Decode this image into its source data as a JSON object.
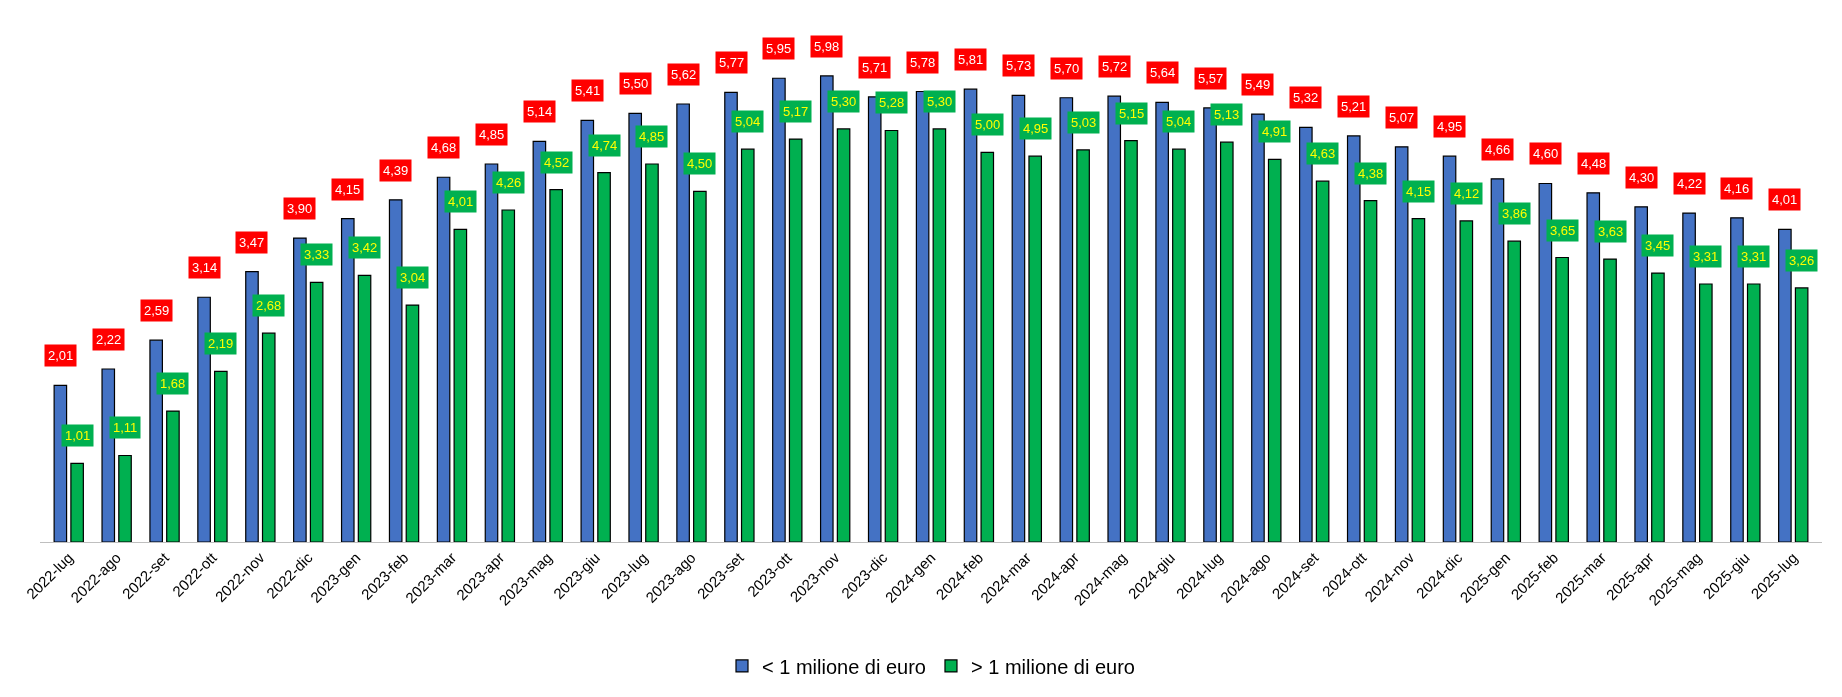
{
  "chart_data": {
    "type": "bar",
    "categories": [
      "2022-lug",
      "2022-ago",
      "2022-set",
      "2022-ott",
      "2022-nov",
      "2022-dic",
      "2023-gen",
      "2023-feb",
      "2023-mar",
      "2023-apr",
      "2023-mag",
      "2023-giu",
      "2023-lug",
      "2023-ago",
      "2023-set",
      "2023-ott",
      "2023-nov",
      "2023-dic",
      "2024-gen",
      "2024-feb",
      "2024-mar",
      "2024-apr",
      "2024-mag",
      "2024-giu",
      "2024-lug",
      "2024-ago",
      "2024-set",
      "2024-ott",
      "2024-nov",
      "2024-dic",
      "2025-gen",
      "2025-feb",
      "2025-mar",
      "2025-apr",
      "2025-mag",
      "2025-giu",
      "2025-lug"
    ],
    "series": [
      {
        "name": "< 1 milione di euro",
        "color": "#4472c4",
        "values": [
          2.01,
          2.22,
          2.59,
          3.14,
          3.47,
          3.9,
          4.15,
          4.39,
          4.68,
          4.85,
          5.14,
          5.41,
          5.5,
          5.62,
          5.77,
          5.95,
          5.98,
          5.71,
          5.78,
          5.81,
          5.73,
          5.7,
          5.72,
          5.64,
          5.57,
          5.49,
          5.32,
          5.21,
          5.07,
          4.95,
          4.66,
          4.6,
          4.48,
          4.3,
          4.22,
          4.16,
          4.01
        ],
        "value_labels": [
          "2,01",
          "2,22",
          "2,59",
          "3,14",
          "3,47",
          "3,90",
          "4,15",
          "4,39",
          "4,68",
          "4,85",
          "5,14",
          "5,41",
          "5,50",
          "5,62",
          "5,77",
          "5,95",
          "5,98",
          "5,71",
          "5,78",
          "5,81",
          "5,73",
          "5,70",
          "5,72",
          "5,64",
          "5,57",
          "5,49",
          "5,32",
          "5,21",
          "5,07",
          "4,95",
          "4,66",
          "4,60",
          "4,48",
          "4,30",
          "4,22",
          "4,16",
          "4,01"
        ]
      },
      {
        "name": "> 1 milione di euro",
        "color": "#00b050",
        "values": [
          1.01,
          1.11,
          1.68,
          2.19,
          2.68,
          3.33,
          3.42,
          3.04,
          4.01,
          4.26,
          4.52,
          4.74,
          4.85,
          4.5,
          5.04,
          5.17,
          5.3,
          5.28,
          5.3,
          5.0,
          4.95,
          5.03,
          5.15,
          5.04,
          5.13,
          4.91,
          4.63,
          4.38,
          4.15,
          4.12,
          3.86,
          3.65,
          3.63,
          3.45,
          3.31,
          3.31,
          3.26
        ],
        "value_labels": [
          "1,01",
          "1,11",
          "1,68",
          "2,19",
          "2,68",
          "3,33",
          "3,42",
          "3,04",
          "4,01",
          "4,26",
          "4,52",
          "4,74",
          "4,85",
          "4,50",
          "5,04",
          "5,17",
          "5,30",
          "5,28",
          "5,30",
          "5,00",
          "4,95",
          "5,03",
          "5,15",
          "5,04",
          "5,13",
          "4,91",
          "4,63",
          "4,38",
          "4,15",
          "4,12",
          "3,86",
          "3,65",
          "3,63",
          "3,45",
          "3,31",
          "3,31",
          "3,26"
        ]
      }
    ],
    "legend": "bottom"
  }
}
